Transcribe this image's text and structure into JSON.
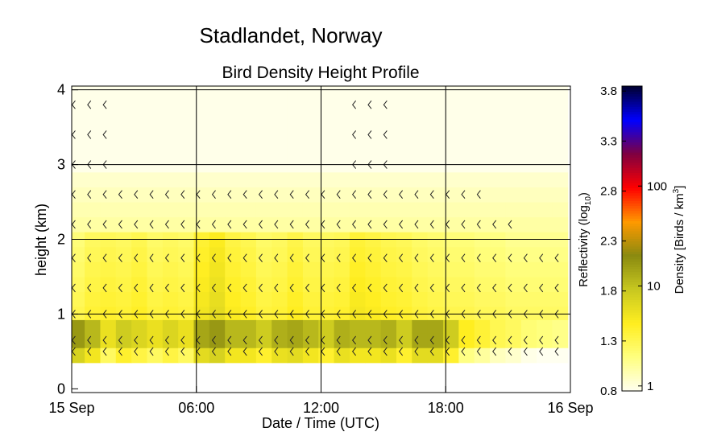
{
  "chart_data": {
    "type": "heatmap",
    "suptitle": "Stadlandet, Norway",
    "title": "Bird Density Height Profile",
    "xlabel": "Date / Time (UTC)",
    "ylabel": "height (km)",
    "x_ticks": [
      "15 Sep",
      "06:00",
      "12:00",
      "18:00",
      "16 Sep"
    ],
    "x_tick_hours": [
      0,
      6,
      12,
      18,
      24
    ],
    "xlim_hours": [
      0,
      24
    ],
    "y_ticks": [
      0,
      1,
      2,
      3,
      4
    ],
    "ylim_km": [
      -0.05,
      4.05
    ],
    "grid": true,
    "colorbar": {
      "left_label": "Reflectivity (log10)",
      "right_label": "Density [Birds / km3]",
      "reflectivity_ticks": [
        0.8,
        1.3,
        1.8,
        2.3,
        2.8,
        3.3,
        3.8
      ],
      "density_ticks": [
        "1",
        "10",
        "100"
      ],
      "density_tick_values": [
        1,
        10,
        100
      ],
      "range_log10": [
        0.8,
        3.85
      ],
      "colors": [
        "#fffff0",
        "#ffff80",
        "#ffee20",
        "#c8c820",
        "#8a8a10",
        "#ff9900",
        "#ff0000",
        "#800040",
        "#0000ff",
        "#000030"
      ]
    },
    "profile_heights_km": [
      0.45,
      0.65,
      0.85,
      1.0,
      1.2,
      1.4,
      1.6,
      1.8,
      2.0,
      2.2,
      2.4,
      2.6,
      2.8,
      3.0,
      3.4,
      3.8
    ],
    "time_hours": [
      0.25,
      1.0,
      1.75,
      2.5,
      3.25,
      4.0,
      4.75,
      5.5,
      6.25,
      7.0,
      7.75,
      8.5,
      9.25,
      10.0,
      10.75,
      11.5,
      12.25,
      13.0,
      13.75,
      14.5,
      15.25,
      16.0,
      16.75,
      17.5,
      18.25,
      19.0,
      19.75,
      20.5,
      21.25,
      22.0,
      22.75,
      23.5
    ],
    "low_layer_density": [
      12,
      8,
      4,
      6,
      5,
      4,
      5,
      4,
      10,
      12,
      8,
      8,
      6,
      9,
      10,
      8,
      6,
      9,
      8,
      8,
      9,
      6,
      10,
      10,
      6,
      3,
      2.5,
      2,
      1.8,
      1.5,
      1.4,
      1.3
    ],
    "mid_layer_density": [
      1.3,
      1.6,
      1.7,
      1.6,
      1.8,
      1.5,
      1.6,
      1.5,
      2.3,
      2.8,
      2.0,
      1.8,
      1.5,
      1.6,
      1.9,
      1.6,
      1.6,
      1.7,
      2.2,
      2.0,
      1.8,
      1.7,
      1.5,
      1.4,
      1.3,
      1.3,
      1.2,
      1.2,
      1.1,
      1.1,
      1.1,
      1.1
    ]
  }
}
